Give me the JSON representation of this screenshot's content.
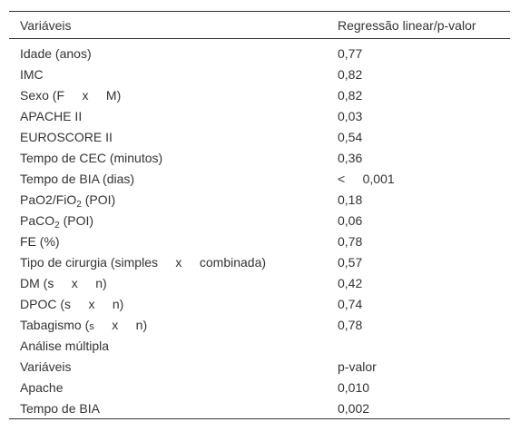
{
  "table": {
    "header": [
      "Variáveis",
      "Regressão linear/p-valor"
    ],
    "rows": [
      [
        "Idade (anos)",
        "0,77"
      ],
      [
        "IMC",
        "0,82"
      ],
      [
        "Sexo (F     x     M)",
        "0,82"
      ],
      [
        "APACHE II",
        "0,03"
      ],
      [
        "EUROSCORE II",
        "0,54"
      ],
      [
        "Tempo de CEC (minutos)",
        "0,36"
      ],
      [
        "Tempo de BIA (dias)",
        "<     0,001"
      ],
      [
        [
          {
            "text": "PaO2/FiO"
          },
          {
            "text": "2",
            "sub": true
          },
          {
            "text": " (POI)"
          }
        ],
        "0,18"
      ],
      [
        [
          {
            "text": "PaCO"
          },
          {
            "text": "2",
            "sub": true
          },
          {
            "text": " (POI)"
          }
        ],
        "0,06"
      ],
      [
        "FE (%)",
        "0,78"
      ],
      [
        "Tipo de cirurgia (simples     x     combinada)",
        "0,57"
      ],
      [
        "DM (s     x     n)",
        "0,42"
      ],
      [
        "DPOC (s     x     n)",
        "0,74"
      ],
      [
        [
          {
            "text": "Tabagismo ("
          },
          {
            "text": "s",
            "small": true
          },
          {
            "text": "     x     n)"
          }
        ],
        "0,78"
      ],
      [
        "Análise múltipla",
        ""
      ],
      [
        "Variáveis",
        "p-valor"
      ],
      [
        "Apache",
        "0,010"
      ],
      [
        "Tempo de BIA",
        "0,002"
      ]
    ]
  }
}
